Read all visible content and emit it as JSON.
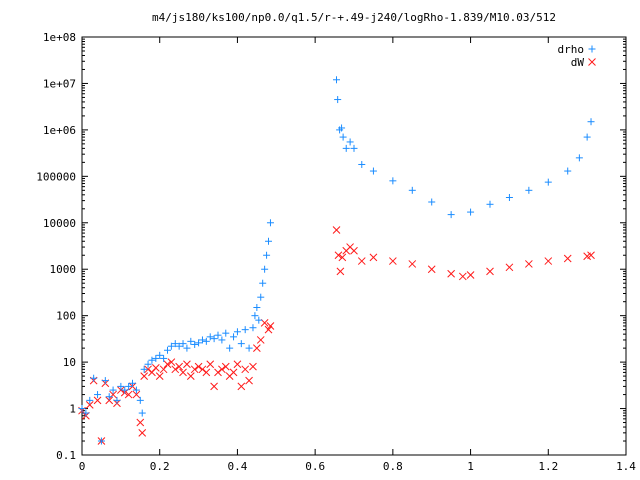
{
  "chart_data": {
    "type": "scatter",
    "title": "m4/js180/ks100/np0.0/q1.5/r-+.49-j240/logRho-1.839/M10.03/512",
    "xlabel": "",
    "ylabel": "",
    "xlim": [
      0,
      1.4
    ],
    "ylim": [
      0.1,
      100000000
    ],
    "yscale": "log",
    "x_ticks": [
      0,
      0.2,
      0.4,
      0.6,
      0.8,
      1,
      1.2,
      1.4
    ],
    "x_tick_labels": [
      "0",
      "0.2",
      "0.4",
      "0.6",
      "0.8",
      "1",
      "1.2",
      "1.4"
    ],
    "y_ticks": [
      0.1,
      1,
      10,
      100,
      1000,
      10000,
      100000,
      1000000,
      10000000,
      100000000
    ],
    "y_tick_labels": [
      "0.1",
      "1",
      "10",
      "100",
      "1000",
      "10000",
      "100000",
      "1e+06",
      "1e+07",
      "1e+08"
    ],
    "grid": false,
    "legend_position": "top-right",
    "series": [
      {
        "name": "drho",
        "marker": "+",
        "color": "#1a8cff",
        "points": [
          [
            0.0,
            1.0
          ],
          [
            0.01,
            0.8
          ],
          [
            0.02,
            1.5
          ],
          [
            0.03,
            4.5
          ],
          [
            0.04,
            2.0
          ],
          [
            0.05,
            0.2
          ],
          [
            0.06,
            4.0
          ],
          [
            0.07,
            1.8
          ],
          [
            0.08,
            2.5
          ],
          [
            0.09,
            1.5
          ],
          [
            0.1,
            3.0
          ],
          [
            0.11,
            2.5
          ],
          [
            0.12,
            3.0
          ],
          [
            0.13,
            3.5
          ],
          [
            0.14,
            2.5
          ],
          [
            0.15,
            1.5
          ],
          [
            0.155,
            0.8
          ],
          [
            0.16,
            7.0
          ],
          [
            0.17,
            9.0
          ],
          [
            0.18,
            11.0
          ],
          [
            0.19,
            12.0
          ],
          [
            0.2,
            14.0
          ],
          [
            0.21,
            12.0
          ],
          [
            0.22,
            18.0
          ],
          [
            0.23,
            22.0
          ],
          [
            0.24,
            25.0
          ],
          [
            0.25,
            22.0
          ],
          [
            0.26,
            25.0
          ],
          [
            0.27,
            20.0
          ],
          [
            0.28,
            28.0
          ],
          [
            0.29,
            24.0
          ],
          [
            0.3,
            26.0
          ],
          [
            0.31,
            30.0
          ],
          [
            0.32,
            28.0
          ],
          [
            0.33,
            35.0
          ],
          [
            0.34,
            32.0
          ],
          [
            0.35,
            38.0
          ],
          [
            0.36,
            30.0
          ],
          [
            0.37,
            42.0
          ],
          [
            0.38,
            20.0
          ],
          [
            0.39,
            35.0
          ],
          [
            0.4,
            45.0
          ],
          [
            0.41,
            25.0
          ],
          [
            0.42,
            50.0
          ],
          [
            0.43,
            20.0
          ],
          [
            0.44,
            55.0
          ],
          [
            0.445,
            100.0
          ],
          [
            0.45,
            150.0
          ],
          [
            0.455,
            80.0
          ],
          [
            0.46,
            250.0
          ],
          [
            0.465,
            500.0
          ],
          [
            0.47,
            1000.0
          ],
          [
            0.475,
            2000.0
          ],
          [
            0.48,
            4000.0
          ],
          [
            0.485,
            10000.0
          ],
          [
            0.655,
            12000000.0
          ],
          [
            0.658,
            4500000.0
          ],
          [
            0.663,
            1000000.0
          ],
          [
            0.668,
            1100000.0
          ],
          [
            0.672,
            700000.0
          ],
          [
            0.68,
            400000.0
          ],
          [
            0.69,
            550000.0
          ],
          [
            0.7,
            400000.0
          ],
          [
            0.72,
            180000.0
          ],
          [
            0.75,
            130000.0
          ],
          [
            0.8,
            80000.0
          ],
          [
            0.85,
            50000.0
          ],
          [
            0.9,
            28000.0
          ],
          [
            0.95,
            15000.0
          ],
          [
            1.0,
            17000.0
          ],
          [
            1.05,
            25000.0
          ],
          [
            1.1,
            35000.0
          ],
          [
            1.15,
            50000.0
          ],
          [
            1.2,
            75000.0
          ],
          [
            1.25,
            130000.0
          ],
          [
            1.28,
            250000.0
          ],
          [
            1.3,
            700000.0
          ],
          [
            1.31,
            1500000.0
          ]
        ]
      },
      {
        "name": "dW",
        "marker": "x",
        "color": "#ff1a1a",
        "points": [
          [
            0.0,
            0.9
          ],
          [
            0.01,
            0.7
          ],
          [
            0.02,
            1.2
          ],
          [
            0.03,
            4.0
          ],
          [
            0.04,
            1.5
          ],
          [
            0.05,
            0.2
          ],
          [
            0.06,
            3.5
          ],
          [
            0.07,
            1.5
          ],
          [
            0.08,
            2.0
          ],
          [
            0.09,
            1.3
          ],
          [
            0.1,
            2.5
          ],
          [
            0.11,
            2.2
          ],
          [
            0.12,
            2.0
          ],
          [
            0.13,
            3.0
          ],
          [
            0.14,
            2.0
          ],
          [
            0.15,
            0.5
          ],
          [
            0.155,
            0.3
          ],
          [
            0.16,
            5.0
          ],
          [
            0.17,
            7.0
          ],
          [
            0.18,
            6.0
          ],
          [
            0.19,
            7.5
          ],
          [
            0.2,
            5.0
          ],
          [
            0.21,
            7.0
          ],
          [
            0.22,
            9.0
          ],
          [
            0.23,
            10.0
          ],
          [
            0.24,
            7.0
          ],
          [
            0.25,
            8.0
          ],
          [
            0.26,
            6.0
          ],
          [
            0.27,
            9.0
          ],
          [
            0.28,
            5.0
          ],
          [
            0.29,
            7.0
          ],
          [
            0.3,
            8.0
          ],
          [
            0.31,
            7.0
          ],
          [
            0.32,
            6.0
          ],
          [
            0.33,
            9.0
          ],
          [
            0.34,
            3.0
          ],
          [
            0.35,
            6.0
          ],
          [
            0.36,
            7.0
          ],
          [
            0.37,
            8.0
          ],
          [
            0.38,
            5.0
          ],
          [
            0.39,
            6.0
          ],
          [
            0.4,
            9.0
          ],
          [
            0.41,
            3.0
          ],
          [
            0.42,
            7.0
          ],
          [
            0.43,
            4.0
          ],
          [
            0.44,
            8.0
          ],
          [
            0.45,
            20.0
          ],
          [
            0.46,
            30.0
          ],
          [
            0.47,
            70.0
          ],
          [
            0.48,
            50.0
          ],
          [
            0.485,
            60.0
          ],
          [
            0.655,
            7000.0
          ],
          [
            0.66,
            2000.0
          ],
          [
            0.665,
            900.0
          ],
          [
            0.67,
            1800.0
          ],
          [
            0.68,
            2500.0
          ],
          [
            0.69,
            3000.0
          ],
          [
            0.7,
            2500.0
          ],
          [
            0.72,
            1500.0
          ],
          [
            0.75,
            1800.0
          ],
          [
            0.8,
            1500.0
          ],
          [
            0.85,
            1300.0
          ],
          [
            0.9,
            1000.0
          ],
          [
            0.95,
            800.0
          ],
          [
            0.98,
            700.0
          ],
          [
            1.0,
            750.0
          ],
          [
            1.05,
            900.0
          ],
          [
            1.1,
            1100.0
          ],
          [
            1.15,
            1300.0
          ],
          [
            1.2,
            1500.0
          ],
          [
            1.25,
            1700.0
          ],
          [
            1.3,
            1900.0
          ],
          [
            1.31,
            2000.0
          ]
        ]
      }
    ]
  }
}
